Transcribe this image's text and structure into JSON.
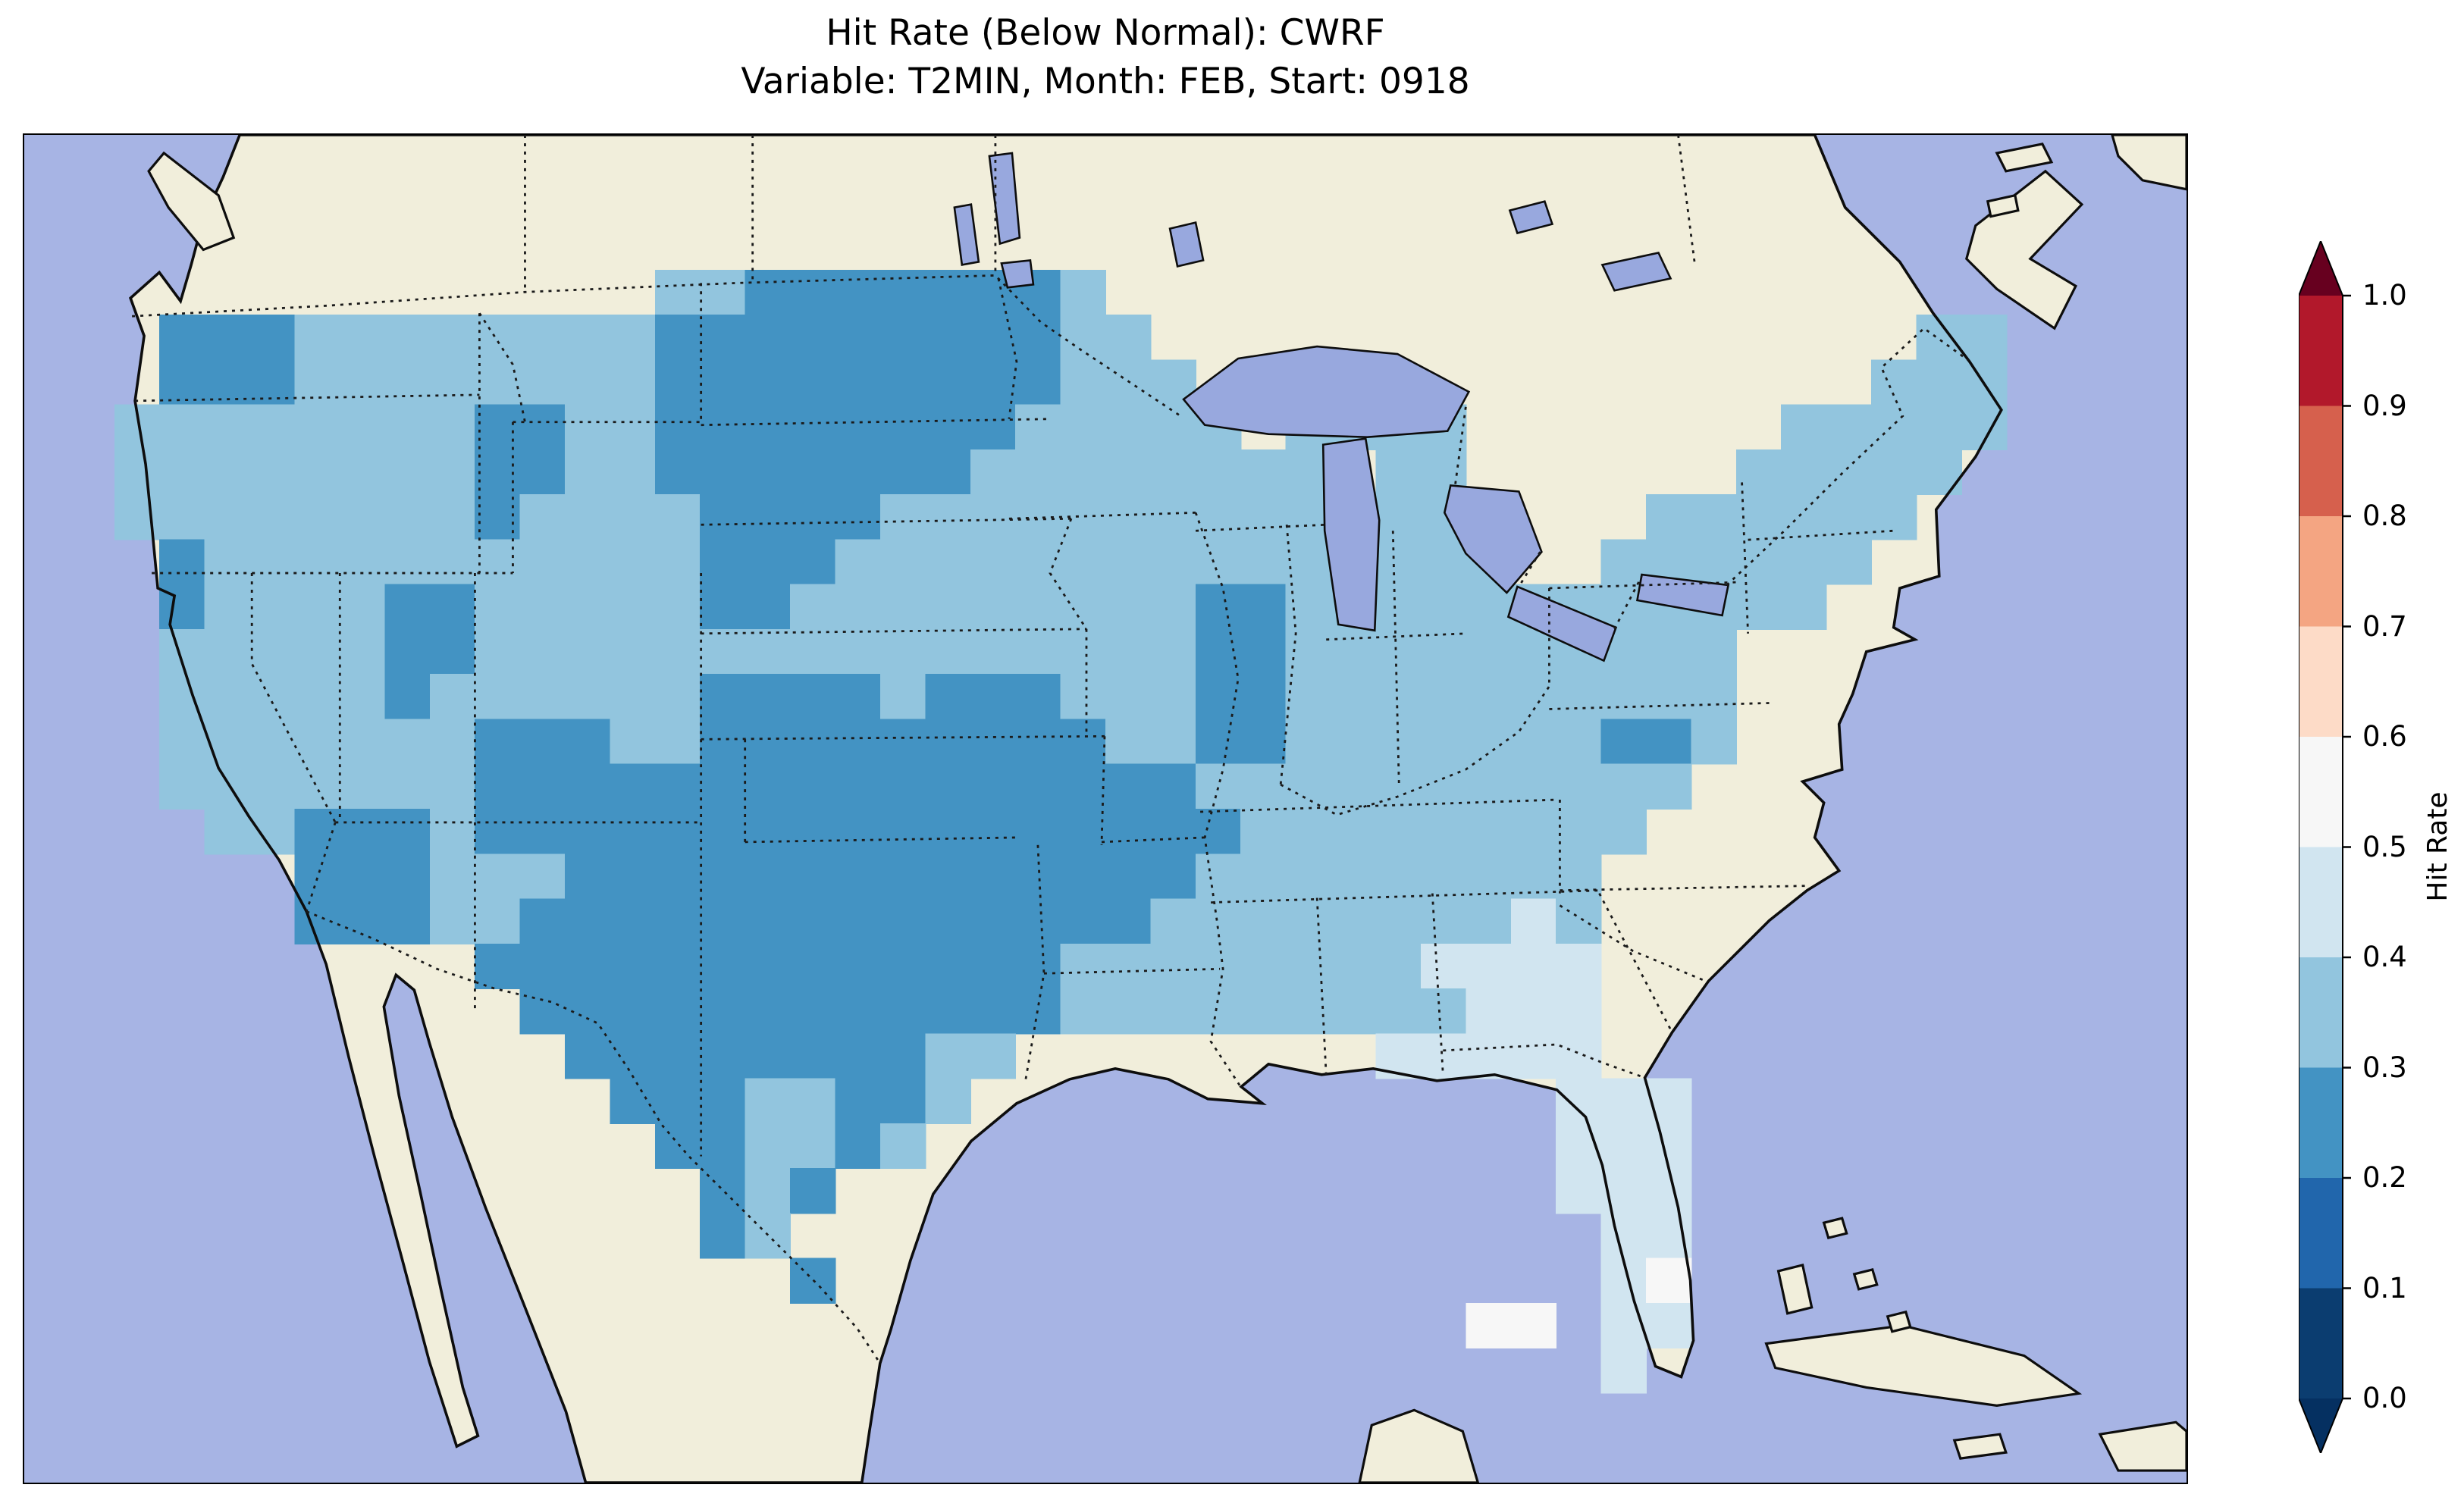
{
  "title": {
    "line1": "Hit Rate (Below Normal): CWRF",
    "line2": "Variable: T2MIN, Month: FEB, Start: 0918"
  },
  "colorbar": {
    "label": "Hit Rate",
    "colormap": "RdBu",
    "ticks_top_to_bottom": [
      "1.0",
      "0.9",
      "0.8",
      "0.7",
      "0.6",
      "0.5",
      "0.4",
      "0.3",
      "0.2",
      "0.1",
      "0.0"
    ],
    "segment_colors_top_to_bottom": [
      "#b2182b",
      "#d6604d",
      "#f4a582",
      "#fddbc7",
      "#f7f7f7",
      "#d1e5f0",
      "#92c5de",
      "#4393c3",
      "#2166ac",
      "#0b3d70"
    ],
    "arrow_over_color": "#67001f",
    "arrow_under_color": "#053061"
  },
  "map": {
    "ocean_color": "#a7b4e4",
    "land_color": "#f1eedb",
    "lake_color": "#98a8de",
    "coastline_color": "#0d0d0d",
    "border_line_style": "dotted"
  },
  "chart_data": {
    "type": "heatmap",
    "title": "Hit Rate (Below Normal): CWRF",
    "subtitle": "Variable: T2MIN, Month: FEB, Start: 0918",
    "metric": "Hit Rate (Below Normal)",
    "model": "CWRF",
    "variable": "T2MIN",
    "month": "FEB",
    "start": "0918",
    "colorbar_label": "Hit Rate",
    "colorbar_range": [
      0.0,
      1.0
    ],
    "colorbar_tick_step": 0.1,
    "value_range_shown_on_map": [
      0.2,
      0.6
    ],
    "value_bins": [
      {
        "key": "a",
        "range": [
          0.2,
          0.3
        ],
        "color": "#4393c3"
      },
      {
        "key": "b",
        "range": [
          0.3,
          0.4
        ],
        "color": "#92c5de"
      },
      {
        "key": "c",
        "range": [
          0.4,
          0.5
        ],
        "color": "#d1e5f0"
      },
      {
        "key": "d",
        "range": [
          0.5,
          0.6
        ],
        "color": "#f7f7f7"
      }
    ],
    "region_summary": [
      {
        "region": "Most of the continental US",
        "hit_rate": "0.3-0.4"
      },
      {
        "region": "Southern Plains: Texas, Oklahoma, eastern New Mexico, Ozarks, lower Mississippi Valley",
        "hit_rate": "0.2-0.3"
      },
      {
        "region": "Northern Plains: Dakotas, western Minnesota, Nebraska",
        "hit_rate": "0.2-0.3"
      },
      {
        "region": "Utah, Arizona and southern Colorado patches",
        "hit_rate": "0.2-0.3"
      },
      {
        "region": "Ohio Valley: Indiana / Kentucky patch",
        "hit_rate": "0.2-0.3"
      },
      {
        "region": "Puget Sound / western Washington",
        "hit_rate": "0.2-0.3"
      },
      {
        "region": "Chesapeake Bay small patch",
        "hit_rate": "0.2-0.3"
      },
      {
        "region": "Florida peninsula and southern Georgia",
        "hit_rate": "0.4-0.5"
      },
      {
        "region": "South Florida scattered cells",
        "hit_rate": "0.5-0.6"
      },
      {
        "region": "No area reaches warm (red) colors",
        "hit_rate": "< 0.6 everywhere"
      }
    ],
    "grid": {
      "cols": 48,
      "rows_count": 30,
      "legend": {
        ".": "no data / outside domain",
        "a": "0.2-0.3",
        "b": "0.3-0.4",
        "c": "0.4-0.5",
        "d": "0.5-0.6"
      },
      "rows": [
        "................................................",
        "................................................",
        "................................................",
        "..............bbaaaaaaab........................",
        "...aaabbbbbbbbaaaaaaaaabb.................bb....",
        "...aaabbbbbbbbaaaaaaaaabbb...............bbb....",
        "..bbbbbbbbaabbaaaaaaaabbbbb.bbbb.......bbbbb....",
        "..bbbbbbbbaabbaaaaaaabbbbbbbb.bb......bbbbb.....",
        "..bbbbbbbbabbbbaaaabbbbbbbbbb.bb....bbbbbb......",
        "...abbbbbbbbbbbaaabbbbbbbbbbb.bbb..bbbbbb.......",
        "...abbbbaabbbbbaabbbbbbbbbaabbbbbbbbbbbb........",
        "...bbbbbaabbbbbbbbbbbbbbbbaabbbbbbbbbb..........",
        "...bbbbbabbbbbbaaaabaaabbbaabbbbbbbbbb..........",
        "...bbbbbbbaaabbaaaaaaaaabbaabbbbbbbaab..........",
        "...bbbbbbbaaaaaaaaaaaaaaaabbbbbbbbbbb...........",
        "....bbaaabaaaaaaaaaaaaaaaaabbbbbbbbb............",
        "......aaabbbaaaaaaaaaaaaaabbbbbbbbb.............",
        "......aaabbaaaaaaaaaaaaaabbbbbbbbcb.............",
        "..........aaaaaaaaaaaaabbbbbbbbcccc.............",
        "...........aaaaaaaaaaaabbbbbbbbbccc.............",
        "............aaaaaaaabb........ccccc.............",
        ".............aaabbaab.............ccc...........",
        "..............aabbab..............ccc...........",
        "...............aba................ccc...........",
        "...............ab..................cc...........",
        ".................a.................cd...........",
        "................................dd.cc...........",
        "...................................c............",
        "................................................",
        "................................................"
      ]
    }
  }
}
